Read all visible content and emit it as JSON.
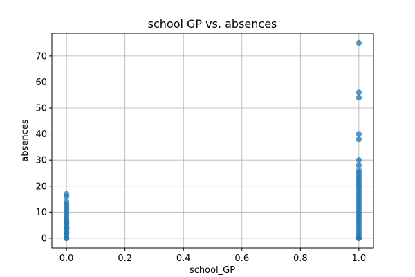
{
  "chart_data": {
    "type": "scatter",
    "title": "school GP vs. absences",
    "xlabel": "school_GP",
    "ylabel": "absences",
    "xlim": [
      -0.05,
      1.05
    ],
    "ylim": [
      -3.75,
      78.75
    ],
    "xticks": [
      "0.0",
      "0.2",
      "0.4",
      "0.6",
      "0.8",
      "1.0"
    ],
    "yticks": [
      "0",
      "10",
      "20",
      "30",
      "40",
      "50",
      "60",
      "70"
    ],
    "grid": true,
    "color": "#1f77b4",
    "series": [
      {
        "x": [
          0,
          0,
          0,
          0,
          0,
          0,
          0,
          0,
          0,
          0,
          0,
          0,
          0,
          0,
          0,
          0,
          0,
          0,
          0,
          0,
          0,
          1,
          1,
          1,
          1,
          1,
          1,
          1,
          1,
          1,
          1,
          1,
          1,
          1,
          1,
          1,
          1,
          1,
          1,
          1,
          1,
          1,
          1,
          1,
          1,
          1,
          1,
          1,
          1,
          1,
          1,
          1,
          1,
          1,
          1,
          1
        ],
        "y": [
          0,
          1,
          2,
          3,
          4,
          5,
          6,
          7,
          8,
          9,
          10,
          11,
          12,
          13,
          14,
          16,
          17,
          0,
          2,
          4,
          6,
          0,
          1,
          2,
          3,
          4,
          5,
          6,
          7,
          8,
          9,
          10,
          11,
          12,
          13,
          14,
          15,
          16,
          17,
          18,
          19,
          20,
          21,
          22,
          23,
          24,
          25,
          26,
          28,
          30,
          38,
          40,
          54,
          56,
          75,
          0
        ]
      }
    ]
  }
}
